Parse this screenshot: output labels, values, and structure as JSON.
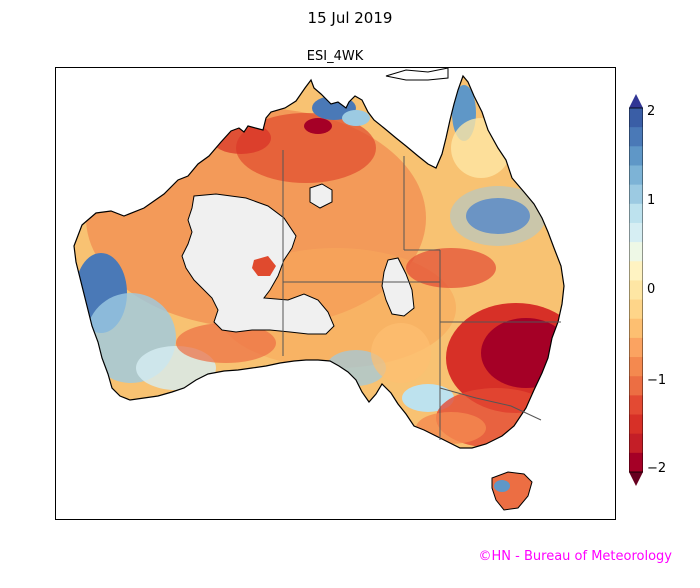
{
  "title": "15 Jul 2019",
  "subtitle": "ESI_4WK",
  "credit": "©HN - Bureau of Meteorology",
  "colorbar": {
    "min": -2,
    "max": 2,
    "ticks": [
      "−2",
      "−1",
      "0",
      "1",
      "2"
    ],
    "colors": [
      "#67001f",
      "#a50026",
      "#c41e27",
      "#d73027",
      "#e34a33",
      "#ec6e43",
      "#f4894f",
      "#fba361",
      "#fdbf71",
      "#fed589",
      "#fee6a4",
      "#fff3c2",
      "#eef8e6",
      "#d6eef3",
      "#bde2ee",
      "#9ccae2",
      "#7db3d6",
      "#5f97c7",
      "#4a79b7",
      "#3a5ea6",
      "#313695"
    ]
  },
  "colors": {
    "mask": "#f0f0f0",
    "credit": "#ff00ff"
  }
}
